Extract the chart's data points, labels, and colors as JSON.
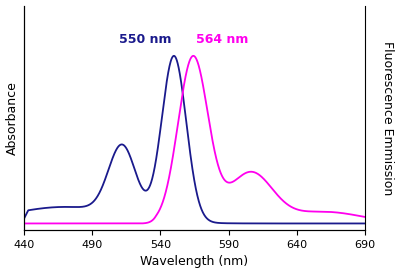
{
  "xlim": [
    440,
    690
  ],
  "xticks": [
    440,
    490,
    540,
    590,
    640,
    690
  ],
  "xlabel": "Wavelength (nm)",
  "ylabel_left": "Absorbance",
  "ylabel_right": "Fluorescence Emmission",
  "abs_peak_nm": 550,
  "em_peak_nm": 564,
  "abs_color": "#1a1a8c",
  "em_color": "#ff00ee",
  "abs_label": "550 nm",
  "em_label": "564 nm",
  "bg_color": "#ffffff",
  "fig_bg": "#ffffff",
  "label_fontsize": 9,
  "annot_fontsize": 9,
  "tick_fontsize": 8,
  "linewidth": 1.3
}
